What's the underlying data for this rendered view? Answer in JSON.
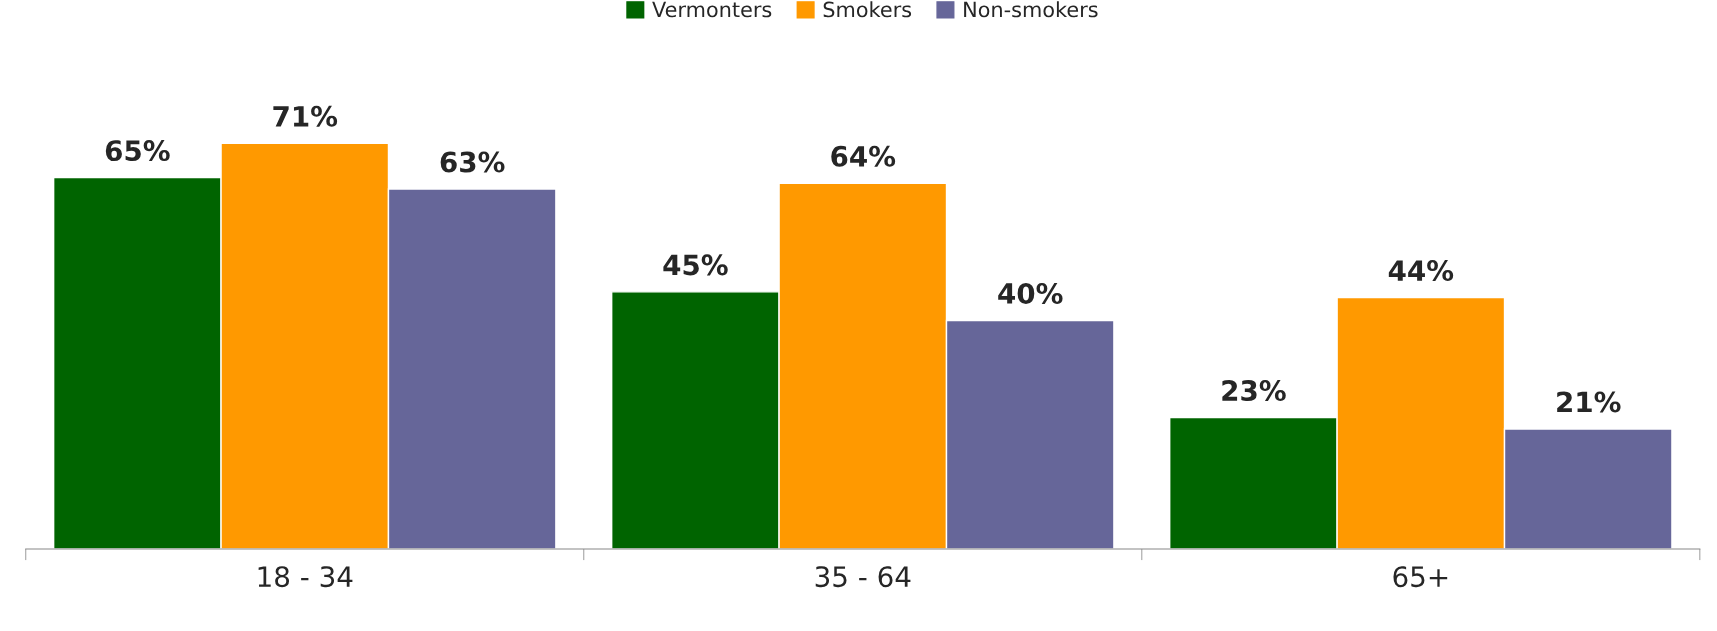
{
  "chart_data": {
    "type": "bar",
    "categories": [
      "18 - 34",
      "35 - 64",
      "65+"
    ],
    "series": [
      {
        "name": "Vermonters",
        "color": "#006400",
        "values": [
          65,
          45,
          23
        ],
        "value_labels": [
          "65%",
          "45%",
          "23%"
        ]
      },
      {
        "name": "Smokers",
        "color": "#ff9900",
        "values": [
          71,
          64,
          44
        ],
        "value_labels": [
          "71%",
          "64%",
          "44%"
        ]
      },
      {
        "name": "Non-smokers",
        "color": "#666699",
        "values": [
          63,
          40,
          21
        ],
        "value_labels": [
          "63%",
          "40%",
          "21%"
        ]
      }
    ],
    "legend": "top",
    "grid": false,
    "tick_labels": "x"
  }
}
